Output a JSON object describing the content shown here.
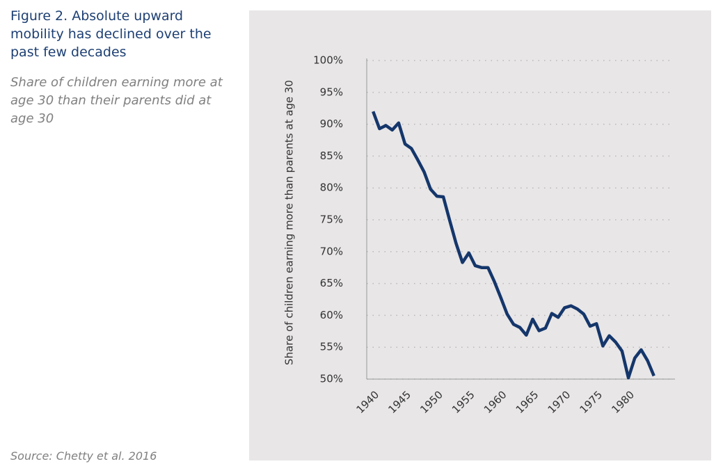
{
  "chart_data": {
    "type": "line",
    "title": "Figure 2. Absolute upward mobility has declined over the past few decades",
    "subtitle": "Share of children earning more at age 30 than their parents did at age 30",
    "source": "Source: Chetty et al. 2016",
    "y_label": "Share of children earning more than parents at age 30",
    "x": [
      1940,
      1941,
      1942,
      1943,
      1944,
      1945,
      1946,
      1947,
      1948,
      1949,
      1950,
      1951,
      1952,
      1953,
      1954,
      1955,
      1956,
      1957,
      1958,
      1959,
      1960,
      1961,
      1962,
      1963,
      1964,
      1965,
      1966,
      1967,
      1968,
      1969,
      1970,
      1971,
      1972,
      1973,
      1974,
      1975,
      1976,
      1977,
      1978,
      1979,
      1980,
      1981,
      1982,
      1983,
      1984
    ],
    "series": [
      {
        "color": "#14366b",
        "values": [
          92.0,
          89.3,
          89.8,
          89.1,
          90.2,
          86.9,
          86.2,
          84.4,
          82.5,
          79.8,
          78.7,
          78.6,
          74.9,
          71.3,
          68.3,
          69.8,
          67.8,
          67.5,
          67.5,
          65.3,
          62.8,
          60.2,
          58.6,
          58.1,
          56.9,
          59.4,
          57.6,
          58.0,
          60.3,
          59.7,
          61.2,
          61.5,
          61.0,
          60.2,
          58.3,
          58.7,
          55.2,
          56.8,
          55.8,
          54.4,
          50.2,
          53.3,
          54.6,
          52.9,
          50.5
        ]
      }
    ],
    "xlim": [
      1939,
      1987.3
    ],
    "xticks": [
      1940,
      1945,
      1950,
      1955,
      1960,
      1965,
      1970,
      1975,
      1980
    ],
    "ylim": [
      50,
      100
    ],
    "yticks": [
      {
        "value": 50,
        "label": "50%"
      },
      {
        "value": 55,
        "label": "55%"
      },
      {
        "value": 60,
        "label": "60%"
      },
      {
        "value": 65,
        "label": "65%"
      },
      {
        "value": 70,
        "label": "70%"
      },
      {
        "value": 75,
        "label": "75%"
      },
      {
        "value": 80,
        "label": "80%"
      },
      {
        "value": 85,
        "label": "85%"
      },
      {
        "value": 90,
        "label": "90%"
      },
      {
        "value": 95,
        "label": "95%"
      },
      {
        "value": 100,
        "label": "100%"
      }
    ],
    "grid": true
  }
}
